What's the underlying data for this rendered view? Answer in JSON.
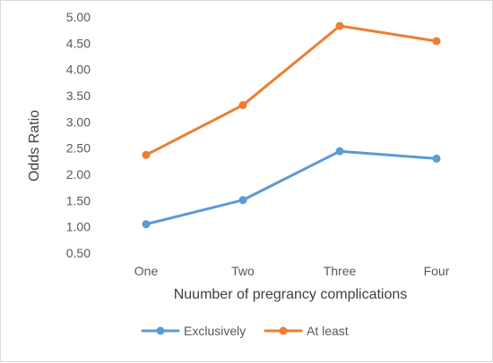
{
  "chart_data": {
    "type": "line",
    "categories": [
      "One",
      "Two",
      "Three",
      "Four"
    ],
    "series": [
      {
        "name": "Exclusively",
        "values": [
          1.05,
          1.51,
          2.44,
          2.3
        ],
        "color": "#5b9bd5"
      },
      {
        "name": "At least",
        "values": [
          2.37,
          3.32,
          4.83,
          4.54
        ],
        "color": "#ed7d31"
      }
    ],
    "xlabel": "Nuumber of pregrancy complications",
    "ylabel": "Odds Ratio",
    "ylim": [
      0.5,
      5.0
    ],
    "yticks": [
      "0.50",
      "1.00",
      "1.50",
      "2.00",
      "2.50",
      "3.00",
      "3.50",
      "4.00",
      "4.50",
      "5.00"
    ],
    "grid": false,
    "legend": "bottom"
  }
}
